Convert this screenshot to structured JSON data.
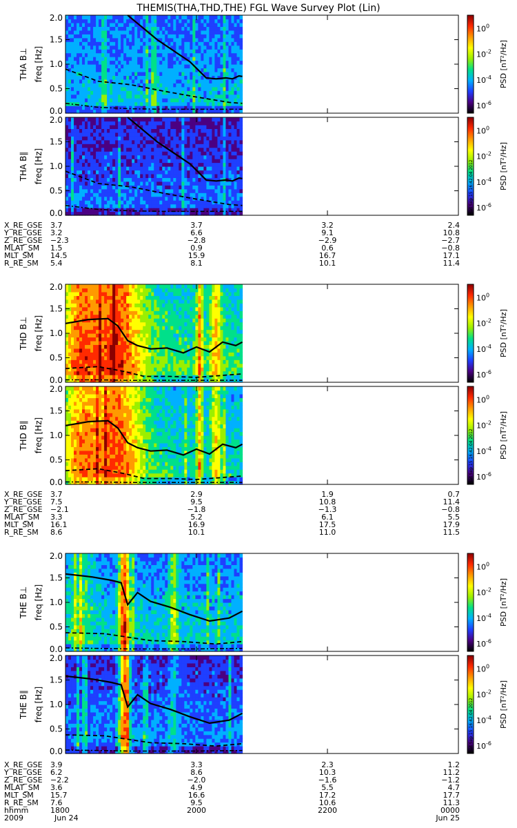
{
  "title": "THEMIS(THA,THD,THE) FGL Wave Survey Plot (Lin)",
  "colorbar": {
    "label": "PSD [nT²/Hz]",
    "tick_labels": [
      "10^-6",
      "10^-4",
      "10^-2",
      "10^0"
    ],
    "colors": [
      "#000000",
      "#4b0082",
      "#1f3fff",
      "#00b0ff",
      "#00e08a",
      "#9bef00",
      "#ffff00",
      "#ff9a00",
      "#ff2a00",
      "#8b0000"
    ]
  },
  "timestamp": "Sat Sep 15 16:42:04 2012",
  "chart_data": {
    "type": "heatmap",
    "x_axis": {
      "label": "hhmm",
      "ticks": [
        "1800",
        "2000",
        "2200",
        "0000"
      ],
      "range_hours": [
        18,
        24
      ],
      "data_end_hours": 20.7
    },
    "y_axis": {
      "label": "freq [Hz]",
      "ticks": [
        "0.0",
        "0.5",
        "1.0",
        "1.5",
        "2.0"
      ],
      "range": [
        0,
        2.0
      ]
    },
    "date_labels": [
      "2009",
      "Jun 24",
      "Jun 25"
    ],
    "panels": [
      {
        "probe": "THA",
        "component": "B⊥",
        "ylabel": "THA B⊥",
        "base_level": 0.42,
        "bursts": [
          {
            "t": 20.9,
            "w": 0.05,
            "s": 0.15
          }
        ],
        "solid_line": {
          "t": [
            18.95,
            19.4,
            19.9,
            20.15,
            20.3,
            20.45,
            20.55,
            20.65,
            20.7
          ],
          "f": [
            2.0,
            1.5,
            1.05,
            0.72,
            0.7,
            0.72,
            0.7,
            0.76,
            0.75
          ]
        },
        "dashed_line": {
          "t": [
            18.0,
            18.5,
            19.0,
            19.5,
            20.0,
            20.5,
            20.7
          ],
          "f": [
            0.9,
            0.65,
            0.58,
            0.45,
            0.33,
            0.22,
            0.2
          ]
        },
        "dashdot_line": {
          "t": [
            18.0,
            18.5,
            19.0,
            19.5,
            20.0,
            20.5,
            20.7
          ],
          "f": [
            0.2,
            0.12,
            0.09,
            0.08,
            0.08,
            0.08,
            0.08
          ]
        }
      },
      {
        "probe": "THA",
        "component": "B∥",
        "ylabel": "THA B∥",
        "base_level": 0.33,
        "bursts": [],
        "solid_line": {
          "t": [
            18.95,
            19.4,
            19.9,
            20.15,
            20.3,
            20.45,
            20.55,
            20.65,
            20.7
          ],
          "f": [
            2.0,
            1.5,
            1.05,
            0.72,
            0.7,
            0.72,
            0.7,
            0.76,
            0.75
          ]
        },
        "dashed_line": {
          "t": [
            18.0,
            18.5,
            19.0,
            19.5,
            20.0,
            20.5,
            20.7
          ],
          "f": [
            0.9,
            0.65,
            0.58,
            0.45,
            0.33,
            0.22,
            0.2
          ]
        },
        "dashdot_line": {
          "t": [
            18.0,
            18.5,
            19.0,
            19.5,
            20.0,
            20.5,
            20.7
          ],
          "f": [
            0.2,
            0.12,
            0.09,
            0.08,
            0.08,
            0.08,
            0.08
          ]
        }
      },
      {
        "probe": "THD",
        "component": "B⊥",
        "ylabel": "THD B⊥",
        "base_level": 0.55,
        "bursts": [
          {
            "t": 18.2,
            "w": 0.25,
            "s": 0.3
          },
          {
            "t": 18.75,
            "w": 0.45,
            "s": 0.45
          },
          {
            "t": 20.05,
            "w": 0.05,
            "s": 0.35
          },
          {
            "t": 20.3,
            "w": 0.08,
            "s": 0.3
          }
        ],
        "solid_line": {
          "t": [
            18.0,
            18.35,
            18.65,
            18.8,
            18.95,
            19.1,
            19.3,
            19.55,
            19.8,
            20.0,
            20.2,
            20.4,
            20.6,
            20.7
          ],
          "f": [
            1.2,
            1.28,
            1.3,
            1.15,
            0.85,
            0.75,
            0.68,
            0.7,
            0.6,
            0.72,
            0.62,
            0.82,
            0.75,
            0.82
          ]
        },
        "dashed_line": {
          "t": [
            18.0,
            18.5,
            18.9,
            19.2,
            19.6,
            20.0,
            20.7
          ],
          "f": [
            0.28,
            0.32,
            0.22,
            0.12,
            0.12,
            0.1,
            0.17
          ]
        },
        "dashdot_line": {
          "t": [
            18.0,
            18.5,
            19.0,
            19.5,
            20.0,
            20.7
          ],
          "f": [
            0.05,
            0.05,
            0.04,
            0.04,
            0.04,
            0.04
          ]
        }
      },
      {
        "probe": "THD",
        "component": "B∥",
        "ylabel": "THD B∥",
        "base_level": 0.5,
        "bursts": [
          {
            "t": 18.2,
            "w": 0.25,
            "s": 0.3
          },
          {
            "t": 18.75,
            "w": 0.45,
            "s": 0.45
          },
          {
            "t": 20.05,
            "w": 0.05,
            "s": 0.35
          },
          {
            "t": 20.3,
            "w": 0.08,
            "s": 0.3
          }
        ],
        "solid_line": {
          "t": [
            18.0,
            18.35,
            18.65,
            18.8,
            18.95,
            19.1,
            19.3,
            19.55,
            19.8,
            20.0,
            20.2,
            20.4,
            20.6,
            20.7
          ],
          "f": [
            1.2,
            1.28,
            1.3,
            1.15,
            0.85,
            0.75,
            0.68,
            0.7,
            0.6,
            0.72,
            0.62,
            0.82,
            0.75,
            0.82
          ]
        },
        "dashed_line": {
          "t": [
            18.0,
            18.5,
            18.9,
            19.2,
            19.6,
            20.0,
            20.7
          ],
          "f": [
            0.28,
            0.32,
            0.22,
            0.12,
            0.12,
            0.1,
            0.17
          ]
        },
        "dashdot_line": {
          "t": [
            18.0,
            18.5,
            19.0,
            19.5,
            20.0,
            20.7
          ],
          "f": [
            0.05,
            0.05,
            0.04,
            0.04,
            0.04,
            0.04
          ]
        }
      },
      {
        "probe": "THE",
        "component": "B⊥",
        "ylabel": "THE B⊥",
        "base_level": 0.45,
        "bursts": [
          {
            "t": 18.9,
            "w": 0.08,
            "s": 0.55
          },
          {
            "t": 19.65,
            "w": 0.07,
            "s": 0.25
          },
          {
            "t": 18.25,
            "w": 0.2,
            "s": 0.15
          }
        ],
        "solid_line": {
          "t": [
            18.0,
            18.4,
            18.7,
            18.85,
            18.95,
            19.1,
            19.3,
            19.6,
            19.9,
            20.2,
            20.5,
            20.7
          ],
          "f": [
            1.58,
            1.52,
            1.45,
            1.4,
            0.95,
            1.2,
            1.02,
            0.9,
            0.75,
            0.62,
            0.68,
            0.82
          ]
        },
        "dashed_line": {
          "t": [
            18.0,
            18.6,
            18.9,
            19.3,
            19.8,
            20.3,
            20.7
          ],
          "f": [
            0.38,
            0.36,
            0.3,
            0.22,
            0.2,
            0.15,
            0.2
          ]
        },
        "dashdot_line": {
          "t": [
            18.0,
            18.5,
            19.0,
            19.5,
            20.0,
            20.7
          ],
          "f": [
            0.07,
            0.06,
            0.05,
            0.05,
            0.05,
            0.06
          ]
        }
      },
      {
        "probe": "THE",
        "component": "B∥",
        "ylabel": "THE B∥",
        "base_level": 0.36,
        "bursts": [
          {
            "t": 18.9,
            "w": 0.08,
            "s": 0.6
          },
          {
            "t": 19.65,
            "w": 0.07,
            "s": 0.15
          }
        ],
        "solid_line": {
          "t": [
            18.0,
            18.4,
            18.7,
            18.85,
            18.95,
            19.1,
            19.3,
            19.6,
            19.9,
            20.2,
            20.5,
            20.7
          ],
          "f": [
            1.58,
            1.52,
            1.45,
            1.4,
            0.95,
            1.2,
            1.02,
            0.9,
            0.75,
            0.62,
            0.68,
            0.82
          ]
        },
        "dashed_line": {
          "t": [
            18.0,
            18.6,
            18.9,
            19.3,
            19.8,
            20.3,
            20.7
          ],
          "f": [
            0.38,
            0.36,
            0.3,
            0.22,
            0.2,
            0.15,
            0.2
          ]
        },
        "dashdot_line": {
          "t": [
            18.0,
            18.5,
            19.0,
            19.5,
            20.0,
            20.7
          ],
          "f": [
            0.07,
            0.06,
            0.05,
            0.05,
            0.05,
            0.06
          ]
        }
      }
    ],
    "ephemeris_blocks": [
      {
        "rows": [
          {
            "label": "X_RE_GSE",
            "values": [
              "3.7",
              "3.7",
              "3.2",
              "2.4"
            ]
          },
          {
            "label": "Y_RE_GSE",
            "values": [
              "3.2",
              "6.6",
              "9.1",
              "10.8"
            ]
          },
          {
            "label": "Z_RE_GSE",
            "values": [
              "−2.3",
              "−2.8",
              "−2.9",
              "−2.7"
            ]
          },
          {
            "label": "MLAT_SM",
            "values": [
              "1.5",
              "0.9",
              "0.6",
              "−0.8"
            ]
          },
          {
            "label": "MLT_SM",
            "values": [
              "14.5",
              "15.9",
              "16.7",
              "17.1"
            ]
          },
          {
            "label": "R_RE_SM",
            "values": [
              "5.4",
              "8.1",
              "10.1",
              "11.4"
            ]
          }
        ]
      },
      {
        "rows": [
          {
            "label": "X_RE_GSE",
            "values": [
              "3.7",
              "2.9",
              "1.9",
              "0.7"
            ]
          },
          {
            "label": "Y_RE_GSE",
            "values": [
              "7.5",
              "9.5",
              "10.8",
              "11.4"
            ]
          },
          {
            "label": "Z_RE_GSE",
            "values": [
              "−2.1",
              "−1.8",
              "−1.3",
              "−0.8"
            ]
          },
          {
            "label": "MLAT_SM",
            "values": [
              "3.3",
              "5.2",
              "6.1",
              "5.5"
            ]
          },
          {
            "label": "MLT_SM",
            "values": [
              "16.1",
              "16.9",
              "17.5",
              "17.9"
            ]
          },
          {
            "label": "R_RE_SM",
            "values": [
              "8.6",
              "10.1",
              "11.0",
              "11.5"
            ]
          }
        ]
      },
      {
        "rows": [
          {
            "label": "X_RE_GSE",
            "values": [
              "3.9",
              "3.3",
              "2.3",
              "1.2"
            ]
          },
          {
            "label": "Y_RE_GSE",
            "values": [
              "6.2",
              "8.6",
              "10.3",
              "11.2"
            ]
          },
          {
            "label": "Z_RE_GSE",
            "values": [
              "−2.2",
              "−2.0",
              "−1.6",
              "−1.2"
            ]
          },
          {
            "label": "MLAT_SM",
            "values": [
              "3.6",
              "4.9",
              "5.5",
              "4.7"
            ]
          },
          {
            "label": "MLT_SM",
            "values": [
              "15.7",
              "16.6",
              "17.2",
              "17.7"
            ]
          },
          {
            "label": "R_RE_SM",
            "values": [
              "7.6",
              "9.5",
              "10.6",
              "11.3"
            ]
          }
        ]
      }
    ]
  }
}
